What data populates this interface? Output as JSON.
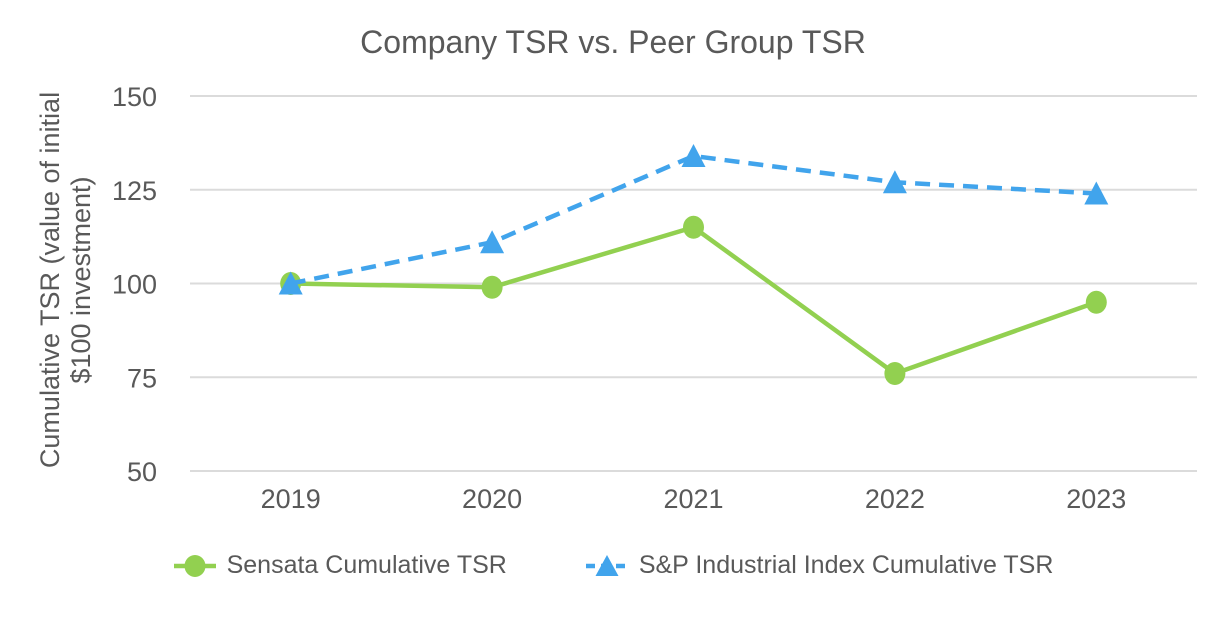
{
  "chart_data": {
    "type": "line",
    "title": "Company TSR vs. Peer Group TSR",
    "xlabel": "",
    "ylabel": "Cumulative TSR (value of initial $100 investment)",
    "ylabel_lines": [
      "Cumulative TSR (value of initial",
      "$100 investment)"
    ],
    "categories": [
      "2019",
      "2020",
      "2021",
      "2022",
      "2023"
    ],
    "series": [
      {
        "name": "Sensata Cumulative TSR",
        "values": [
          100,
          99,
          115,
          76,
          95
        ],
        "color": "#92D050",
        "marker": "circle",
        "line_style": "solid"
      },
      {
        "name": "S&P Industrial Index Cumulative TSR",
        "values": [
          100,
          111,
          134,
          127,
          124
        ],
        "color": "#41A4EC",
        "marker": "triangle",
        "line_style": "dashed"
      }
    ],
    "ylim": [
      50,
      150
    ],
    "yticks": [
      150,
      125,
      100,
      75,
      50
    ],
    "grid": "horizontal",
    "legend_position": "bottom",
    "colors": {
      "grid": "#DBDBDB",
      "text": "#595959",
      "background": "#FFFFFF"
    }
  }
}
